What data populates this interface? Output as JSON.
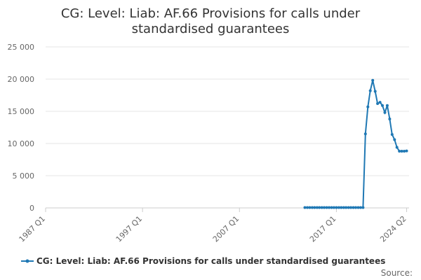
{
  "chart_data": {
    "type": "line",
    "title_lines": [
      "CG: Level: Liab: AF.66 Provisions for calls under",
      "standardised guarantees"
    ],
    "xlabel": "",
    "ylabel": "",
    "ylim": [
      0,
      25000
    ],
    "y_ticks": [
      "25 000",
      "20 000",
      "15 000",
      "10 000",
      "5 000",
      "0"
    ],
    "y_tick_values": [
      25000,
      20000,
      15000,
      10000,
      5000,
      0
    ],
    "x_tick_labels": [
      "1987 Q1",
      "1997 Q1",
      "2007 Q1",
      "2017 Q1",
      "2024 Q2"
    ],
    "x_tick_values": [
      1987.0,
      1997.0,
      2007.0,
      2017.0,
      2024.25
    ],
    "xlim": [
      1987.0,
      2024.5
    ],
    "grid": true,
    "legend_position": "bottom",
    "series": [
      {
        "name": "CG: Level: Liab: AF.66 Provisions for calls under standardised guarantees",
        "color": "#1f78b4",
        "x": [
          "2013 Q4",
          "2014 Q1",
          "2014 Q2",
          "2014 Q3",
          "2014 Q4",
          "2015 Q1",
          "2015 Q2",
          "2015 Q3",
          "2015 Q4",
          "2016 Q1",
          "2016 Q2",
          "2016 Q3",
          "2016 Q4",
          "2017 Q1",
          "2017 Q2",
          "2017 Q3",
          "2017 Q4",
          "2018 Q1",
          "2018 Q2",
          "2018 Q3",
          "2018 Q4",
          "2019 Q1",
          "2019 Q2",
          "2019 Q3",
          "2019 Q4",
          "2020 Q1",
          "2020 Q2",
          "2020 Q3",
          "2020 Q4",
          "2021 Q1",
          "2021 Q2",
          "2021 Q3",
          "2021 Q4",
          "2022 Q1",
          "2022 Q2",
          "2022 Q3",
          "2022 Q4",
          "2023 Q1",
          "2023 Q2",
          "2023 Q3",
          "2023 Q4",
          "2024 Q1",
          "2024 Q2"
        ],
        "values": [
          50,
          50,
          50,
          50,
          50,
          50,
          50,
          50,
          50,
          50,
          50,
          50,
          50,
          50,
          50,
          50,
          50,
          50,
          50,
          50,
          50,
          50,
          50,
          50,
          50,
          11500,
          15700,
          18200,
          19800,
          18100,
          16200,
          16400,
          15900,
          14800,
          15900,
          13800,
          11400,
          10600,
          9400,
          8800,
          8800,
          8800,
          8850
        ]
      }
    ]
  },
  "source_label": "Source:"
}
